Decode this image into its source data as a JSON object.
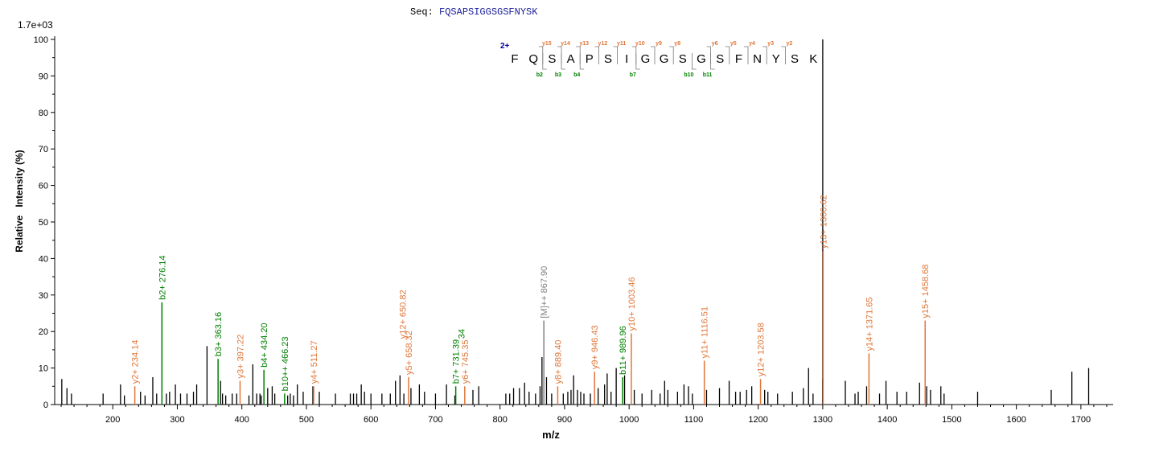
{
  "header": {
    "seq_label": "Seq:",
    "seq_value": "FQSAPSIGGSGSFNYSK",
    "max_intensity": "1.7e+03"
  },
  "colors": {
    "y_ion": "#e0773a",
    "b_ion": "#008000",
    "precursor": "#808080",
    "unassigned": "#000000",
    "charge": "#0000a0"
  },
  "chart_data": {
    "type": "bar",
    "title": "",
    "xlabel": "m/z",
    "ylabel": "Relative   Intensity (%)",
    "xlim": [
      110,
      1750
    ],
    "ylim": [
      0,
      100
    ],
    "xticks": [
      200,
      300,
      400,
      500,
      600,
      700,
      800,
      900,
      1000,
      1100,
      1200,
      1300,
      1400,
      1500,
      1600,
      1700
    ],
    "yticks": [
      0,
      10,
      20,
      30,
      40,
      50,
      60,
      70,
      80,
      90,
      100
    ],
    "annotated_peaks": [
      {
        "mz": 234.14,
        "y": 5,
        "label": "y2+ 234.14",
        "ion": "y"
      },
      {
        "mz": 276.14,
        "y": 28,
        "label": "b2+ 276.14",
        "ion": "b"
      },
      {
        "mz": 363.16,
        "y": 12.5,
        "label": "b3+ 363.16",
        "ion": "b"
      },
      {
        "mz": 397.22,
        "y": 6.5,
        "label": "y3+ 397.22",
        "ion": "y"
      },
      {
        "mz": 434.2,
        "y": 9.5,
        "label": "b4+ 434.20",
        "ion": "b"
      },
      {
        "mz": 466.23,
        "y": 3,
        "label": "b10++ 466.23",
        "ion": "b"
      },
      {
        "mz": 511.27,
        "y": 5,
        "label": "y4+ 511.27",
        "ion": "y"
      },
      {
        "mz": 658.32,
        "y": 7.5,
        "label": "y5+ 658.32",
        "ion": "y"
      },
      {
        "mz": 731.39,
        "y": 5,
        "label": "b7+ 731.39",
        "ion": "b"
      },
      {
        "mz": 745.35,
        "y": 5,
        "label": "y6+ 745.35",
        "ion": "y"
      },
      {
        "mz": 867.9,
        "y": 23,
        "label": "[M]++ 867.90",
        "ion": "p"
      },
      {
        "mz": 889.4,
        "y": 5,
        "label": "y8+ 889.40",
        "ion": "y"
      },
      {
        "mz": 946.43,
        "y": 9,
        "label": "y9+ 946.43",
        "ion": "y"
      },
      {
        "mz": 989.96,
        "y": 7.5,
        "label": "b11+ 989.96",
        "ion": "b"
      },
      {
        "mz": 1003.46,
        "y": 19.5,
        "label": "y10+ 1003.46",
        "ion": "y"
      },
      {
        "mz": 1116.51,
        "y": 12,
        "label": "y11+ 1116.51",
        "ion": "y"
      },
      {
        "mz": 1203.58,
        "y": 7,
        "label": "y12+ 1203.58",
        "ion": "y"
      },
      {
        "mz": 1300.62,
        "y": 42,
        "label": "y13+ 1300.62",
        "ion": "y"
      },
      {
        "mz": 1371.65,
        "y": 14,
        "label": "y14+ 1371.65",
        "ion": "y"
      },
      {
        "mz": 1458.68,
        "y": 23,
        "label": "y15+ 1458.68",
        "ion": "y"
      }
    ],
    "overlap_labels": [
      {
        "mz": 649,
        "text": "y12+ 650.82",
        "ion": "y"
      },
      {
        "mz": 740,
        "text": "34",
        "ion": "b"
      }
    ],
    "base_peak": {
      "mz": 1300,
      "y": 100
    },
    "unassigned_peaks": [
      [
        121,
        7
      ],
      [
        129,
        4.5
      ],
      [
        136,
        3
      ],
      [
        185,
        3
      ],
      [
        212,
        5.5
      ],
      [
        218,
        2.5
      ],
      [
        243,
        3.5
      ],
      [
        250,
        2.5
      ],
      [
        262,
        7.5
      ],
      [
        268,
        3
      ],
      [
        283,
        3
      ],
      [
        288,
        3.5
      ],
      [
        297,
        5.5
      ],
      [
        305,
        3
      ],
      [
        315,
        3
      ],
      [
        325,
        3.5
      ],
      [
        330,
        5.5
      ],
      [
        346,
        16
      ],
      [
        367,
        6.5
      ],
      [
        370,
        3
      ],
      [
        375,
        2.5
      ],
      [
        385,
        3
      ],
      [
        392,
        3
      ],
      [
        411,
        2.5
      ],
      [
        417,
        11
      ],
      [
        423,
        3
      ],
      [
        428,
        3
      ],
      [
        430,
        2.5
      ],
      [
        440,
        4.5
      ],
      [
        447,
        5
      ],
      [
        451,
        3
      ],
      [
        471,
        2.5
      ],
      [
        475,
        3
      ],
      [
        480,
        2.5
      ],
      [
        486,
        5.5
      ],
      [
        495,
        3.5
      ],
      [
        510,
        5
      ],
      [
        520,
        3.5
      ],
      [
        545,
        3
      ],
      [
        568,
        3
      ],
      [
        573,
        3
      ],
      [
        578,
        3
      ],
      [
        585,
        5.5
      ],
      [
        590,
        3.5
      ],
      [
        600,
        3
      ],
      [
        617,
        3
      ],
      [
        630,
        3
      ],
      [
        638,
        6.5
      ],
      [
        645,
        8
      ],
      [
        651,
        3
      ],
      [
        662,
        4.5
      ],
      [
        675,
        5.5
      ],
      [
        683,
        3.5
      ],
      [
        700,
        3
      ],
      [
        717,
        5.5
      ],
      [
        730,
        2.5
      ],
      [
        758,
        4
      ],
      [
        767,
        5
      ],
      [
        809,
        3
      ],
      [
        815,
        3
      ],
      [
        821,
        4.5
      ],
      [
        830,
        4.5
      ],
      [
        838,
        6
      ],
      [
        845,
        3.5
      ],
      [
        855,
        3
      ],
      [
        862,
        5
      ],
      [
        865,
        13
      ],
      [
        872,
        7.5
      ],
      [
        880,
        3
      ],
      [
        898,
        3
      ],
      [
        905,
        3.5
      ],
      [
        910,
        4
      ],
      [
        914,
        8
      ],
      [
        920,
        4
      ],
      [
        925,
        3.5
      ],
      [
        930,
        3
      ],
      [
        940,
        3
      ],
      [
        952,
        4.5
      ],
      [
        962,
        5.5
      ],
      [
        966,
        8.5
      ],
      [
        972,
        3.5
      ],
      [
        980,
        10
      ],
      [
        993,
        8
      ],
      [
        1008,
        4
      ],
      [
        1020,
        3
      ],
      [
        1035,
        4
      ],
      [
        1048,
        3
      ],
      [
        1055,
        6.5
      ],
      [
        1060,
        4
      ],
      [
        1075,
        3.5
      ],
      [
        1085,
        5.5
      ],
      [
        1092,
        5
      ],
      [
        1098,
        3
      ],
      [
        1120,
        4
      ],
      [
        1140,
        4.5
      ],
      [
        1155,
        6.5
      ],
      [
        1165,
        3.5
      ],
      [
        1172,
        3.5
      ],
      [
        1182,
        4
      ],
      [
        1190,
        5
      ],
      [
        1210,
        4
      ],
      [
        1215,
        3.5
      ],
      [
        1230,
        3
      ],
      [
        1253,
        3.5
      ],
      [
        1270,
        4.5
      ],
      [
        1278,
        10
      ],
      [
        1285,
        3
      ],
      [
        1300,
        7
      ],
      [
        1335,
        6.5
      ],
      [
        1350,
        3
      ],
      [
        1355,
        3.5
      ],
      [
        1368,
        5
      ],
      [
        1388,
        3
      ],
      [
        1398,
        6.5
      ],
      [
        1415,
        3.5
      ],
      [
        1430,
        3.5
      ],
      [
        1450,
        6
      ],
      [
        1461,
        5
      ],
      [
        1467,
        4
      ],
      [
        1483,
        5
      ],
      [
        1488,
        3
      ],
      [
        1540,
        3.5
      ],
      [
        1654,
        4
      ],
      [
        1686,
        9
      ],
      [
        1712,
        10
      ]
    ]
  },
  "sequence_annotation": {
    "charge": "2+",
    "residues": [
      "F",
      "Q",
      "S",
      "A",
      "P",
      "S",
      "I",
      "G",
      "G",
      "S",
      "G",
      "S",
      "F",
      "N",
      "Y",
      "S",
      "K"
    ],
    "y_labels": [
      {
        "after": 2,
        "text": "y15"
      },
      {
        "after": 3,
        "text": "y14"
      },
      {
        "after": 4,
        "text": "y13"
      },
      {
        "after": 5,
        "text": "y12"
      },
      {
        "after": 6,
        "text": "y11"
      },
      {
        "after": 7,
        "text": "y10"
      },
      {
        "after": 8,
        "text": "y9"
      },
      {
        "after": 9,
        "text": "y8"
      },
      {
        "after": 11,
        "text": "y6"
      },
      {
        "after": 12,
        "text": "y5"
      },
      {
        "after": 13,
        "text": "y4"
      },
      {
        "after": 14,
        "text": "y3"
      },
      {
        "after": 15,
        "text": "y2"
      }
    ],
    "b_labels": [
      {
        "after": 2,
        "text": "b2"
      },
      {
        "after": 3,
        "text": "b3"
      },
      {
        "after": 4,
        "text": "b4"
      },
      {
        "after": 7,
        "text": "b7"
      },
      {
        "after": 10,
        "text": "b10"
      },
      {
        "after": 11,
        "text": "b11"
      }
    ]
  }
}
